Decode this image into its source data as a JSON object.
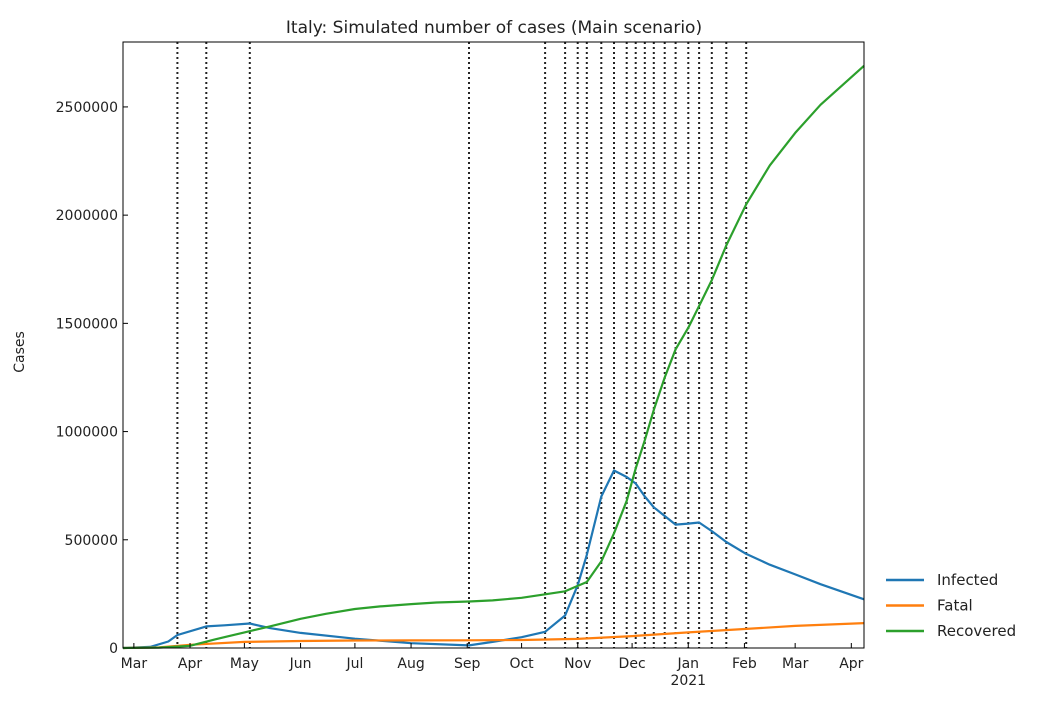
{
  "chart_data": {
    "type": "line",
    "title": "Italy: Simulated number of cases (Main scenario)",
    "xlabel": "",
    "ylabel": "Cases",
    "x_range": [
      "2020-02-24",
      "2021-04-08"
    ],
    "ylim": [
      0,
      2800000
    ],
    "y_ticks": [
      0,
      500000,
      1000000,
      1500000,
      2000000,
      2500000
    ],
    "y_tick_labels": [
      "0",
      "500000",
      "1000000",
      "1500000",
      "2000000",
      "2500000"
    ],
    "x_ticks": [
      {
        "date": "2020-03-01",
        "label": "Mar"
      },
      {
        "date": "2020-04-01",
        "label": "Apr"
      },
      {
        "date": "2020-05-01",
        "label": "May"
      },
      {
        "date": "2020-06-01",
        "label": "Jun"
      },
      {
        "date": "2020-07-01",
        "label": "Jul"
      },
      {
        "date": "2020-08-01",
        "label": "Aug"
      },
      {
        "date": "2020-09-01",
        "label": "Sep"
      },
      {
        "date": "2020-10-01",
        "label": "Oct"
      },
      {
        "date": "2020-11-01",
        "label": "Nov"
      },
      {
        "date": "2020-12-01",
        "label": "Dec"
      },
      {
        "date": "2021-01-01",
        "label": "Jan",
        "sublabel": "2021"
      },
      {
        "date": "2021-02-01",
        "label": "Feb"
      },
      {
        "date": "2021-03-01",
        "label": "Mar"
      },
      {
        "date": "2021-04-01",
        "label": "Apr"
      }
    ],
    "phase_change_dates": [
      "2020-03-25",
      "2020-04-10",
      "2020-05-04",
      "2020-09-02",
      "2020-10-14",
      "2020-10-25",
      "2020-11-01",
      "2020-11-06",
      "2020-11-14",
      "2020-11-21",
      "2020-11-28",
      "2020-12-03",
      "2020-12-08",
      "2020-12-13",
      "2020-12-19",
      "2020-12-25",
      "2021-01-01",
      "2021-01-07",
      "2021-01-14",
      "2021-01-22",
      "2021-02-02"
    ],
    "grid": false,
    "legend_position": "outside-right-bottom",
    "series": [
      {
        "name": "Infected",
        "color": "#1f77b4",
        "points": [
          [
            "2020-02-24",
            0
          ],
          [
            "2020-03-10",
            5000
          ],
          [
            "2020-03-20",
            30000
          ],
          [
            "2020-03-25",
            60000
          ],
          [
            "2020-04-10",
            100000
          ],
          [
            "2020-04-20",
            105000
          ],
          [
            "2020-05-04",
            113000
          ],
          [
            "2020-05-15",
            92000
          ],
          [
            "2020-06-01",
            70000
          ],
          [
            "2020-07-01",
            43000
          ],
          [
            "2020-08-01",
            22000
          ],
          [
            "2020-09-02",
            12000
          ],
          [
            "2020-09-15",
            28000
          ],
          [
            "2020-10-01",
            50000
          ],
          [
            "2020-10-14",
            75000
          ],
          [
            "2020-10-25",
            150000
          ],
          [
            "2020-11-01",
            290000
          ],
          [
            "2020-11-06",
            430000
          ],
          [
            "2020-11-14",
            700000
          ],
          [
            "2020-11-21",
            820000
          ],
          [
            "2020-11-28",
            790000
          ],
          [
            "2020-12-03",
            760000
          ],
          [
            "2020-12-08",
            700000
          ],
          [
            "2020-12-13",
            650000
          ],
          [
            "2020-12-19",
            610000
          ],
          [
            "2020-12-25",
            570000
          ],
          [
            "2021-01-01",
            575000
          ],
          [
            "2021-01-07",
            580000
          ],
          [
            "2021-01-14",
            540000
          ],
          [
            "2021-01-22",
            490000
          ],
          [
            "2021-02-02",
            435000
          ],
          [
            "2021-02-15",
            385000
          ],
          [
            "2021-03-01",
            340000
          ],
          [
            "2021-03-15",
            295000
          ],
          [
            "2021-04-08",
            225000
          ]
        ]
      },
      {
        "name": "Fatal",
        "color": "#ff7f0e",
        "points": [
          [
            "2020-02-24",
            0
          ],
          [
            "2020-03-15",
            3000
          ],
          [
            "2020-04-01",
            15000
          ],
          [
            "2020-05-01",
            28000
          ],
          [
            "2020-06-01",
            32500
          ],
          [
            "2020-07-01",
            34500
          ],
          [
            "2020-08-01",
            35000
          ],
          [
            "2020-09-01",
            35500
          ],
          [
            "2020-10-01",
            37000
          ],
          [
            "2020-11-01",
            42000
          ],
          [
            "2020-12-01",
            55000
          ],
          [
            "2021-01-01",
            72000
          ],
          [
            "2021-02-01",
            88000
          ],
          [
            "2021-03-01",
            102000
          ],
          [
            "2021-04-08",
            115000
          ]
        ]
      },
      {
        "name": "Recovered",
        "color": "#2ca02c",
        "points": [
          [
            "2020-02-24",
            0
          ],
          [
            "2020-03-15",
            2000
          ],
          [
            "2020-04-01",
            10000
          ],
          [
            "2020-04-15",
            40000
          ],
          [
            "2020-05-01",
            72000
          ],
          [
            "2020-05-15",
            100000
          ],
          [
            "2020-06-01",
            135000
          ],
          [
            "2020-06-15",
            158000
          ],
          [
            "2020-07-01",
            180000
          ],
          [
            "2020-07-15",
            192000
          ],
          [
            "2020-08-01",
            203000
          ],
          [
            "2020-08-15",
            210000
          ],
          [
            "2020-09-02",
            215000
          ],
          [
            "2020-09-15",
            220000
          ],
          [
            "2020-10-01",
            232000
          ],
          [
            "2020-10-14",
            248000
          ],
          [
            "2020-10-25",
            262000
          ],
          [
            "2020-11-06",
            305000
          ],
          [
            "2020-11-14",
            400000
          ],
          [
            "2020-11-21",
            530000
          ],
          [
            "2020-11-28",
            680000
          ],
          [
            "2020-12-03",
            830000
          ],
          [
            "2020-12-08",
            960000
          ],
          [
            "2020-12-13",
            1100000
          ],
          [
            "2020-12-19",
            1250000
          ],
          [
            "2020-12-25",
            1380000
          ],
          [
            "2021-01-01",
            1480000
          ],
          [
            "2021-01-07",
            1580000
          ],
          [
            "2021-01-14",
            1700000
          ],
          [
            "2021-01-22",
            1860000
          ],
          [
            "2021-02-02",
            2050000
          ],
          [
            "2021-02-15",
            2230000
          ],
          [
            "2021-03-01",
            2380000
          ],
          [
            "2021-03-15",
            2510000
          ],
          [
            "2021-04-08",
            2690000
          ]
        ]
      }
    ]
  }
}
